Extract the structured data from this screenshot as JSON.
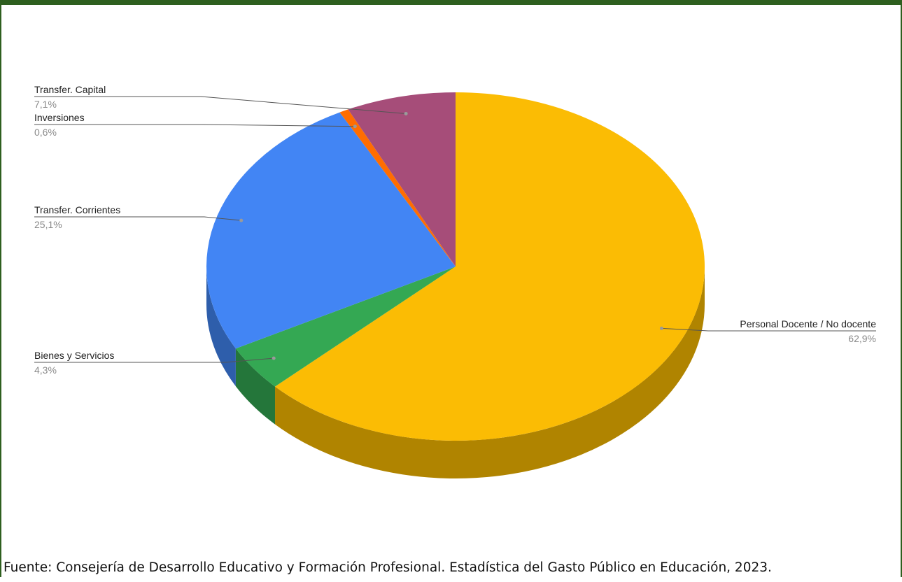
{
  "chart_data": {
    "type": "pie",
    "style": "3d",
    "slices": [
      {
        "label": "Personal Docente / No docente",
        "value": 62.9,
        "value_label": "62,9%",
        "color": "#fbbc04",
        "side_color": "#b08400"
      },
      {
        "label": "Bienes y Servicios",
        "value": 4.3,
        "value_label": "4,3%",
        "color": "#34a853",
        "side_color": "#24763a"
      },
      {
        "label": "Transfer. Corrientes",
        "value": 25.1,
        "value_label": "25,1%",
        "color": "#4285f4",
        "side_color": "#2e5eab"
      },
      {
        "label": "Inversiones",
        "value": 0.6,
        "value_label": "0,6%",
        "color": "#ff6d01",
        "side_color": "#b34c01"
      },
      {
        "label": "Transfer. Capital",
        "value": 7.1,
        "value_label": "7,1%",
        "color": "#a64d79",
        "side_color": "#743655"
      }
    ],
    "legend": "none"
  },
  "footer": {
    "source": "Fuente: Consejería de Desarrollo Educativo y Formación Profesional. Estadística del Gasto Público en Educación, 2023."
  }
}
